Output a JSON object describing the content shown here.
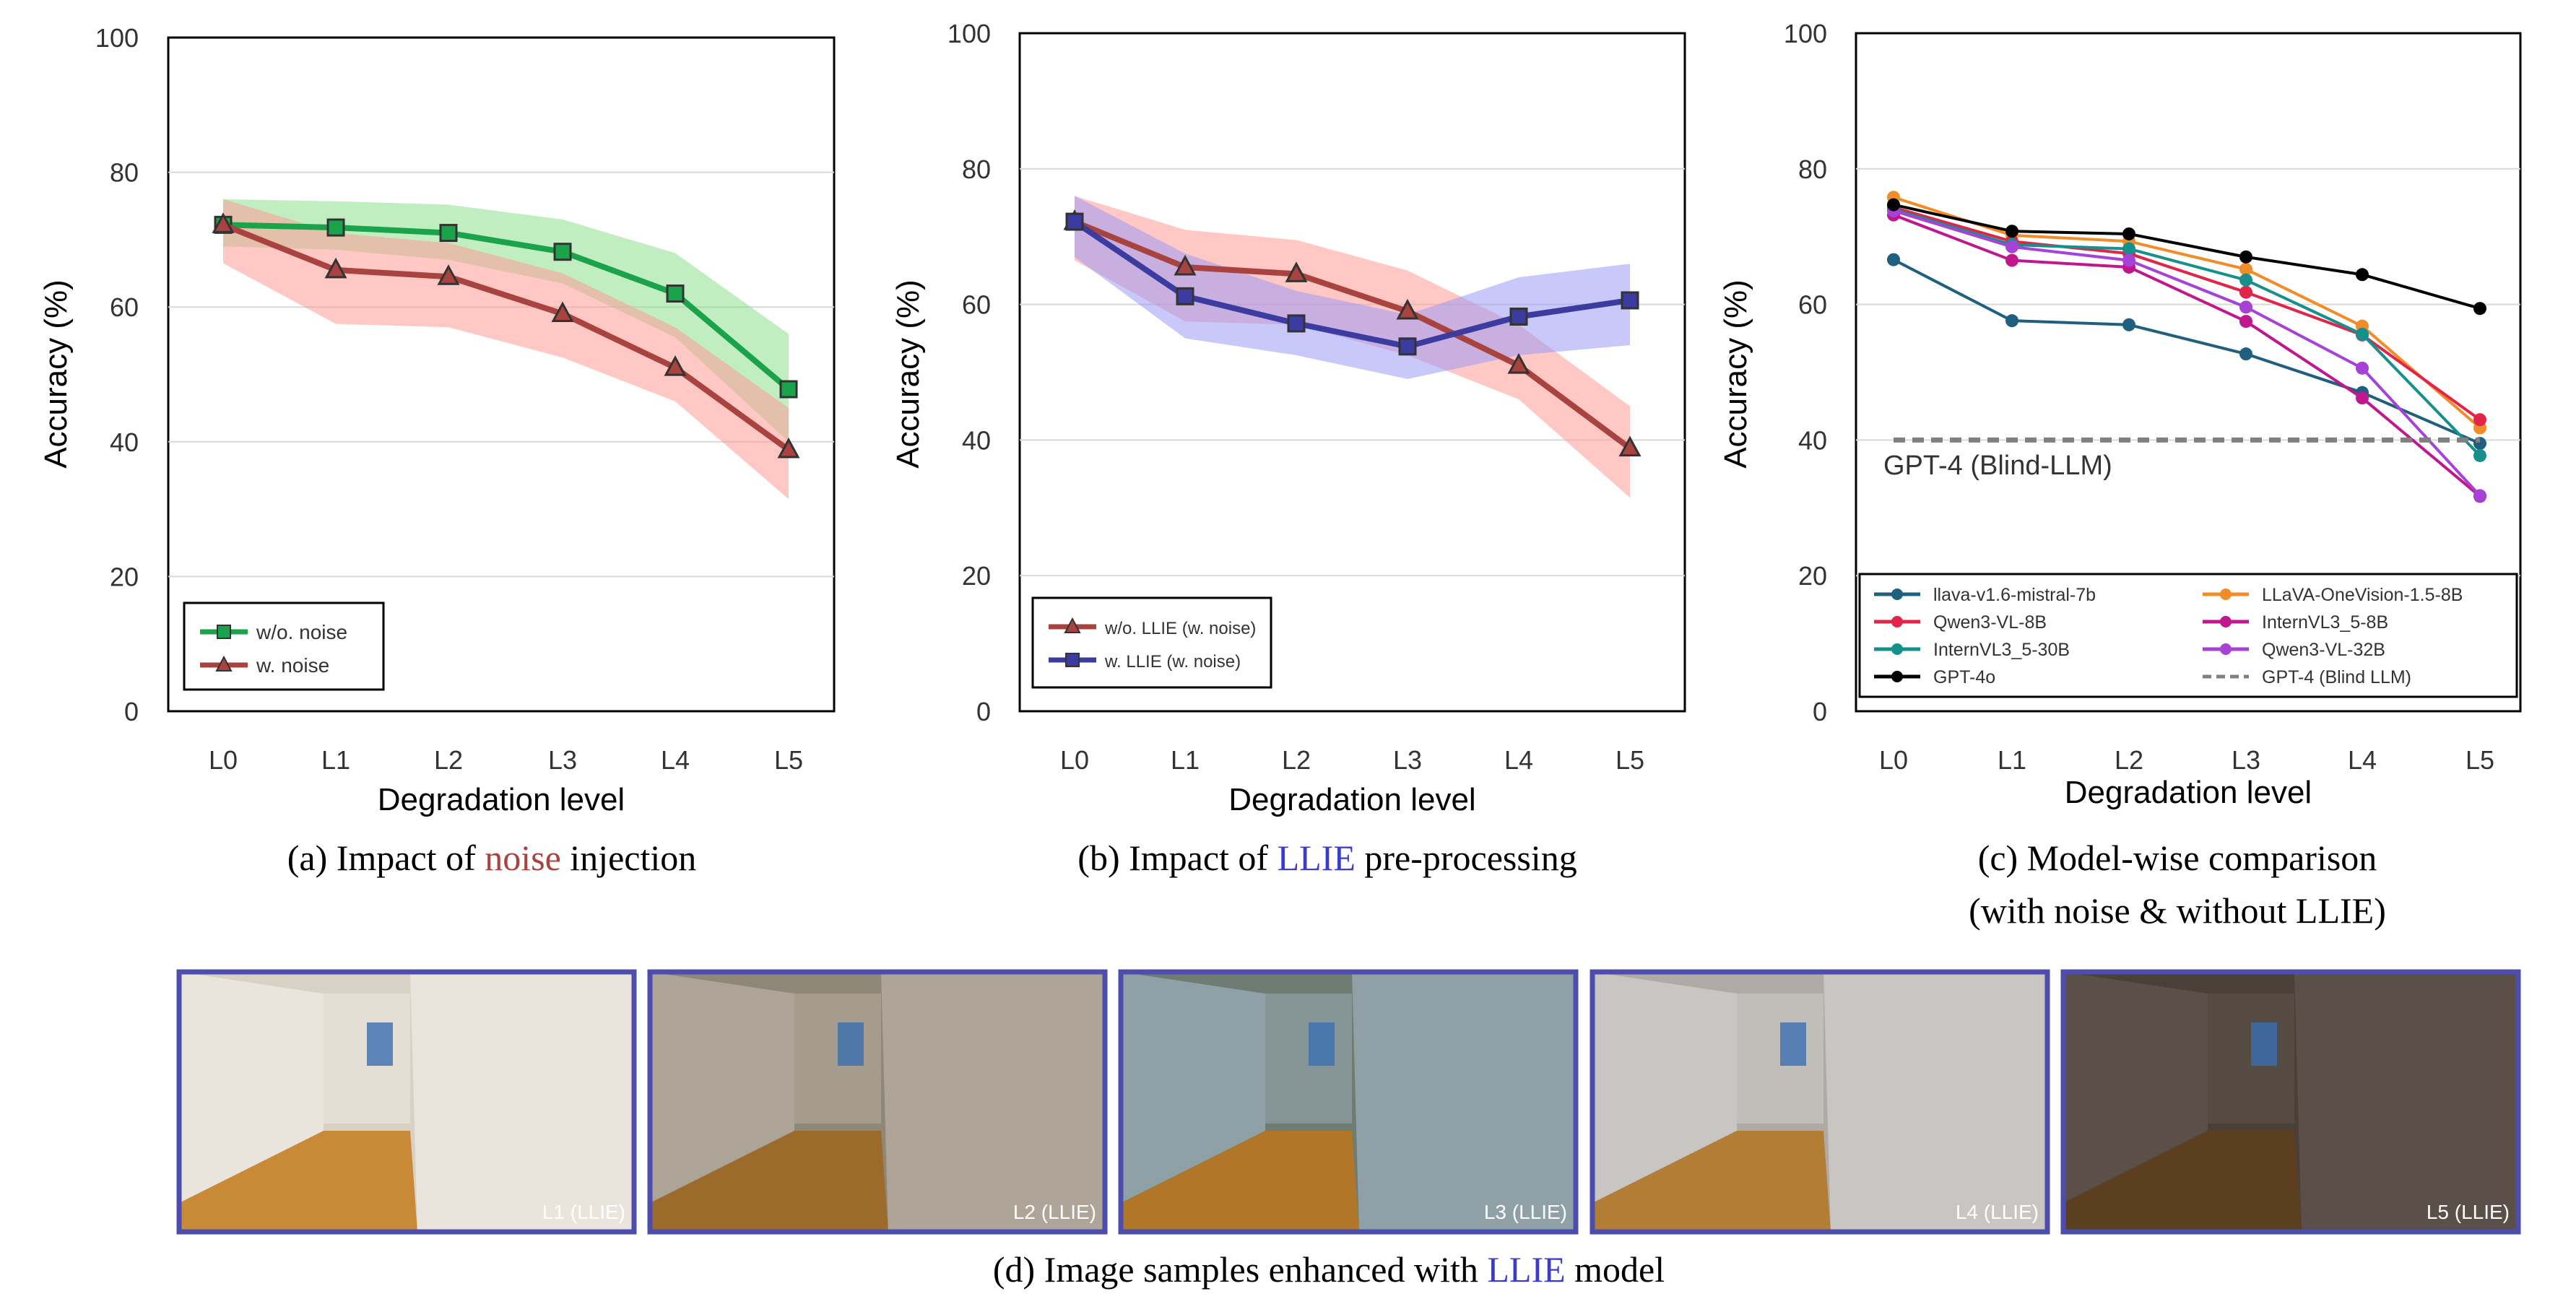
{
  "colors": {
    "green": "#1aa34a",
    "green_band": "#8ee08e",
    "red": "#a8433f",
    "red_band": "#ff9a96",
    "blue": "#3b3ba0",
    "blue_band": "#9b9bf5",
    "grid": "#d9d9d9",
    "frame_blue": "#4d4dad",
    "noise_text": "#a8433f",
    "llie_text": "#3b3bcf"
  },
  "captions": {
    "a": {
      "pre": "(a) Impact of ",
      "key": "noise",
      "post": " injection"
    },
    "b": {
      "pre": "(b) Impact of ",
      "key": "LLIE",
      "post": " pre-processing"
    },
    "c": {
      "line1": "(c) Model-wise comparison",
      "line2": "(with noise & without LLIE)"
    },
    "d": {
      "pre": "(d) Image samples enhanced with ",
      "key": "LLIE",
      "post": " model"
    }
  },
  "chart_data": [
    {
      "id": "a",
      "type": "line",
      "xlabel": "Degradation level",
      "ylabel": "Accuracy (%)",
      "ylim": [
        0,
        100
      ],
      "yticks": [
        0,
        20,
        40,
        60,
        80,
        100
      ],
      "categories": [
        "L0",
        "L1",
        "L2",
        "L3",
        "L4",
        "L5"
      ],
      "legend_position": "bottom-left",
      "series": [
        {
          "name": "w/o. noise",
          "marker": "square",
          "color": "#1aa34a",
          "band_color": "#8ee08e",
          "values": [
            72.2,
            71.8,
            71.0,
            68.2,
            62.0,
            47.8
          ],
          "band_low": [
            69.0,
            68.5,
            67.0,
            63.5,
            55.5,
            40.0
          ],
          "band_high": [
            76.0,
            75.7,
            75.2,
            73.0,
            68.0,
            56.0
          ]
        },
        {
          "name": "w. noise",
          "marker": "triangle",
          "color": "#a8433f",
          "band_color": "#ff9a96",
          "values": [
            72.2,
            65.5,
            64.5,
            59.0,
            51.0,
            38.8
          ],
          "band_low": [
            66.5,
            57.5,
            57.0,
            52.5,
            46.0,
            31.5
          ],
          "band_high": [
            76.0,
            71.0,
            69.5,
            65.0,
            57.0,
            45.0
          ]
        }
      ]
    },
    {
      "id": "b",
      "type": "line",
      "xlabel": "Degradation level",
      "ylabel": "Accuracy (%)",
      "ylim": [
        0,
        100
      ],
      "yticks": [
        0,
        20,
        40,
        60,
        80,
        100
      ],
      "categories": [
        "L0",
        "L1",
        "L2",
        "L3",
        "L4",
        "L5"
      ],
      "legend_position": "bottom-left",
      "series": [
        {
          "name": "w/o. LLIE (w. noise)",
          "marker": "triangle",
          "color": "#a8433f",
          "band_color": "#ff9a96",
          "values": [
            72.2,
            65.5,
            64.5,
            59.0,
            51.0,
            38.8
          ],
          "band_low": [
            66.5,
            57.5,
            57.0,
            52.5,
            46.0,
            31.5
          ],
          "band_high": [
            76.0,
            71.0,
            69.5,
            65.0,
            57.0,
            45.0
          ]
        },
        {
          "name": "w. LLIE (w. noise)",
          "marker": "square",
          "color": "#3b3ba0",
          "band_color": "#9b9bf5",
          "values": [
            72.2,
            61.2,
            57.2,
            53.8,
            58.2,
            60.6
          ],
          "band_low": [
            67.0,
            55.0,
            52.5,
            49.0,
            52.5,
            54.0
          ],
          "band_high": [
            76.0,
            67.5,
            62.0,
            58.5,
            64.0,
            66.0
          ]
        }
      ]
    },
    {
      "id": "c",
      "type": "line",
      "xlabel": "Degradation level",
      "ylabel": "Accuracy (%)",
      "ylim": [
        0,
        100
      ],
      "yticks": [
        0,
        20,
        40,
        60,
        80,
        100
      ],
      "categories": [
        "L0",
        "L1",
        "L2",
        "L3",
        "L4",
        "L5"
      ],
      "legend_position": "bottom",
      "annotation": "GPT-4 (Blind-LLM)",
      "series": [
        {
          "name": "llava-v1.6-mistral-7b",
          "color": "#1f5f7f",
          "values": [
            66.6,
            57.6,
            57.0,
            52.7,
            47.0,
            39.5
          ]
        },
        {
          "name": "LLaVA-OneVision-1.5-8B",
          "color": "#f28c28",
          "values": [
            75.8,
            70.2,
            69.3,
            65.2,
            56.8,
            41.8
          ]
        },
        {
          "name": "Qwen3-VL-8B",
          "color": "#e0244a",
          "values": [
            74.3,
            69.3,
            67.5,
            61.8,
            55.5,
            43.0
          ]
        },
        {
          "name": "InternVL3_5-8B",
          "color": "#c0178f",
          "values": [
            73.2,
            66.5,
            65.5,
            57.5,
            46.2,
            31.7
          ]
        },
        {
          "name": "InternVL3_5-30B",
          "color": "#16908c",
          "values": [
            74.0,
            68.8,
            68.2,
            63.6,
            55.6,
            37.7
          ]
        },
        {
          "name": "Qwen3-VL-32B",
          "color": "#a642d6",
          "values": [
            73.8,
            68.5,
            66.5,
            59.6,
            50.6,
            31.8
          ]
        },
        {
          "name": "GPT-4o",
          "color": "#000000",
          "values": [
            74.7,
            70.8,
            70.4,
            67.0,
            64.4,
            59.4
          ]
        },
        {
          "name": "GPT-4 (Blind LLM)",
          "color": "#808080",
          "dashed": true,
          "values": [
            40.0,
            40.0,
            40.0,
            40.0,
            40.0,
            40.0
          ]
        }
      ]
    }
  ],
  "samples": [
    {
      "label": "L1 (LLIE)",
      "wall": "#e9e4dc",
      "floor": "#c98a37",
      "shade": "#d8d1c6"
    },
    {
      "label": "L2 (LLIE)",
      "wall": "#aea598",
      "floor": "#9c6b2c",
      "shade": "#8f8777"
    },
    {
      "label": "L3 (LLIE)",
      "wall": "#8fa0a6",
      "floor": "#b0762a",
      "shade": "#6f7c72"
    },
    {
      "label": "L4 (LLIE)",
      "wall": "#c9c5c2",
      "floor": "#b27d34",
      "shade": "#b0aaa5"
    },
    {
      "label": "L5 (LLIE)",
      "wall": "#5a5049",
      "floor": "#5b3f1f",
      "shade": "#4a4038"
    }
  ]
}
